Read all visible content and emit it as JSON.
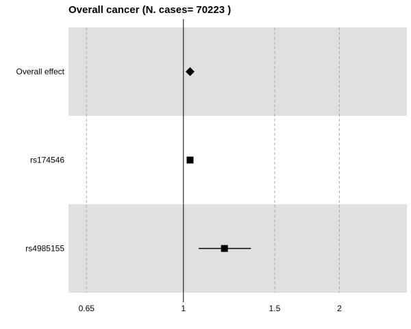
{
  "chart_data": {
    "type": "forest",
    "title": "Overall cancer  (N. cases= 70223 )",
    "x_scale": "log",
    "xlim": [
      0.6,
      2.7
    ],
    "reference_line": 1,
    "grid_lines": [
      0.65,
      1.5,
      2
    ],
    "x_ticks": [
      {
        "value": 0.65,
        "label": "0.65"
      },
      {
        "value": 1,
        "label": "1"
      },
      {
        "value": 1.5,
        "label": "1.5"
      },
      {
        "value": 2,
        "label": "2"
      }
    ],
    "rows": [
      {
        "label": "Overall effect",
        "estimate": 1.03,
        "lower": null,
        "upper": null,
        "marker": "diamond",
        "shaded": true
      },
      {
        "label": "rs174546",
        "estimate": 1.03,
        "lower": null,
        "upper": null,
        "marker": "square",
        "shaded": false
      },
      {
        "label": "rs4985155",
        "estimate": 1.2,
        "lower": 1.07,
        "upper": 1.35,
        "marker": "square",
        "shaded": true
      }
    ],
    "colors": {
      "band": "#e0e0e0",
      "grid": "#aaaaaa",
      "reference": "#000000",
      "marker": "#000000",
      "text": "#000000"
    }
  }
}
